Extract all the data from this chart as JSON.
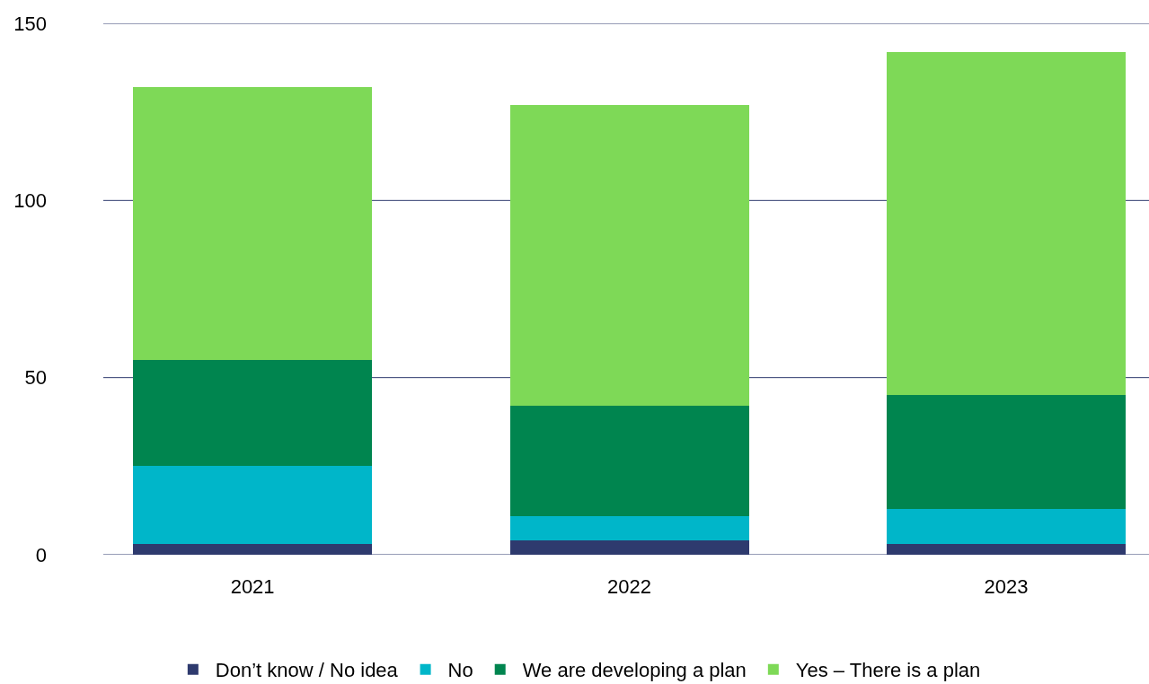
{
  "chart_data": {
    "type": "bar",
    "stacked": true,
    "categories": [
      "2021",
      "2022",
      "2023"
    ],
    "series": [
      {
        "name": "Don’t know / No idea",
        "color": "#2e3a6e",
        "values": [
          3,
          4,
          3
        ]
      },
      {
        "name": "No",
        "color": "#00b6c9",
        "values": [
          22,
          7,
          10
        ]
      },
      {
        "name": "We are developing a plan",
        "color": "#00854f",
        "values": [
          30,
          31,
          32
        ]
      },
      {
        "name": "Yes – There is a plan",
        "color": "#7ed957",
        "values": [
          77,
          85,
          97
        ]
      }
    ],
    "ylim": [
      0,
      150
    ],
    "yticks": [
      0,
      50,
      100,
      150
    ],
    "grid": "y",
    "legend": "bottom"
  }
}
